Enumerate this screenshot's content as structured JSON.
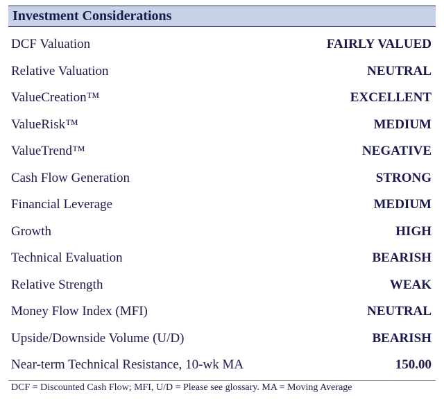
{
  "title": "Investment Considerations",
  "rows": [
    {
      "label": "DCF Valuation",
      "value": "FAIRLY VALUED"
    },
    {
      "label": "Relative Valuation",
      "value": "NEUTRAL"
    },
    {
      "label": "ValueCreation™",
      "value": "EXCELLENT"
    },
    {
      "label": "ValueRisk™",
      "value": "MEDIUM"
    },
    {
      "label": "ValueTrend™",
      "value": "NEGATIVE"
    },
    {
      "label": "Cash Flow Generation",
      "value": "STRONG"
    },
    {
      "label": "Financial Leverage",
      "value": "MEDIUM"
    },
    {
      "label": "Growth",
      "value": "HIGH"
    },
    {
      "label": "Technical Evaluation",
      "value": "BEARISH"
    },
    {
      "label": "Relative Strength",
      "value": "WEAK"
    },
    {
      "label": "Money Flow Index (MFI)",
      "value": "NEUTRAL"
    },
    {
      "label": "Upside/Downside Volume (U/D)",
      "value": "BEARISH"
    },
    {
      "label": "Near-term Technical Resistance, 10-wk MA",
      "value": "150.00"
    }
  ],
  "footnote": "DCF = Discounted Cash Flow; MFI, U/D = Please see glossary. MA = Moving Average",
  "colors": {
    "text": "#1a1a4d",
    "title_bg": "#c5d2e8",
    "rule": "#888888"
  },
  "font": {
    "family": "Times New Roman",
    "title_size_pt": 15,
    "label_size_pt": 14,
    "value_size_pt": 14,
    "foot_size_pt": 10
  },
  "type": "table"
}
